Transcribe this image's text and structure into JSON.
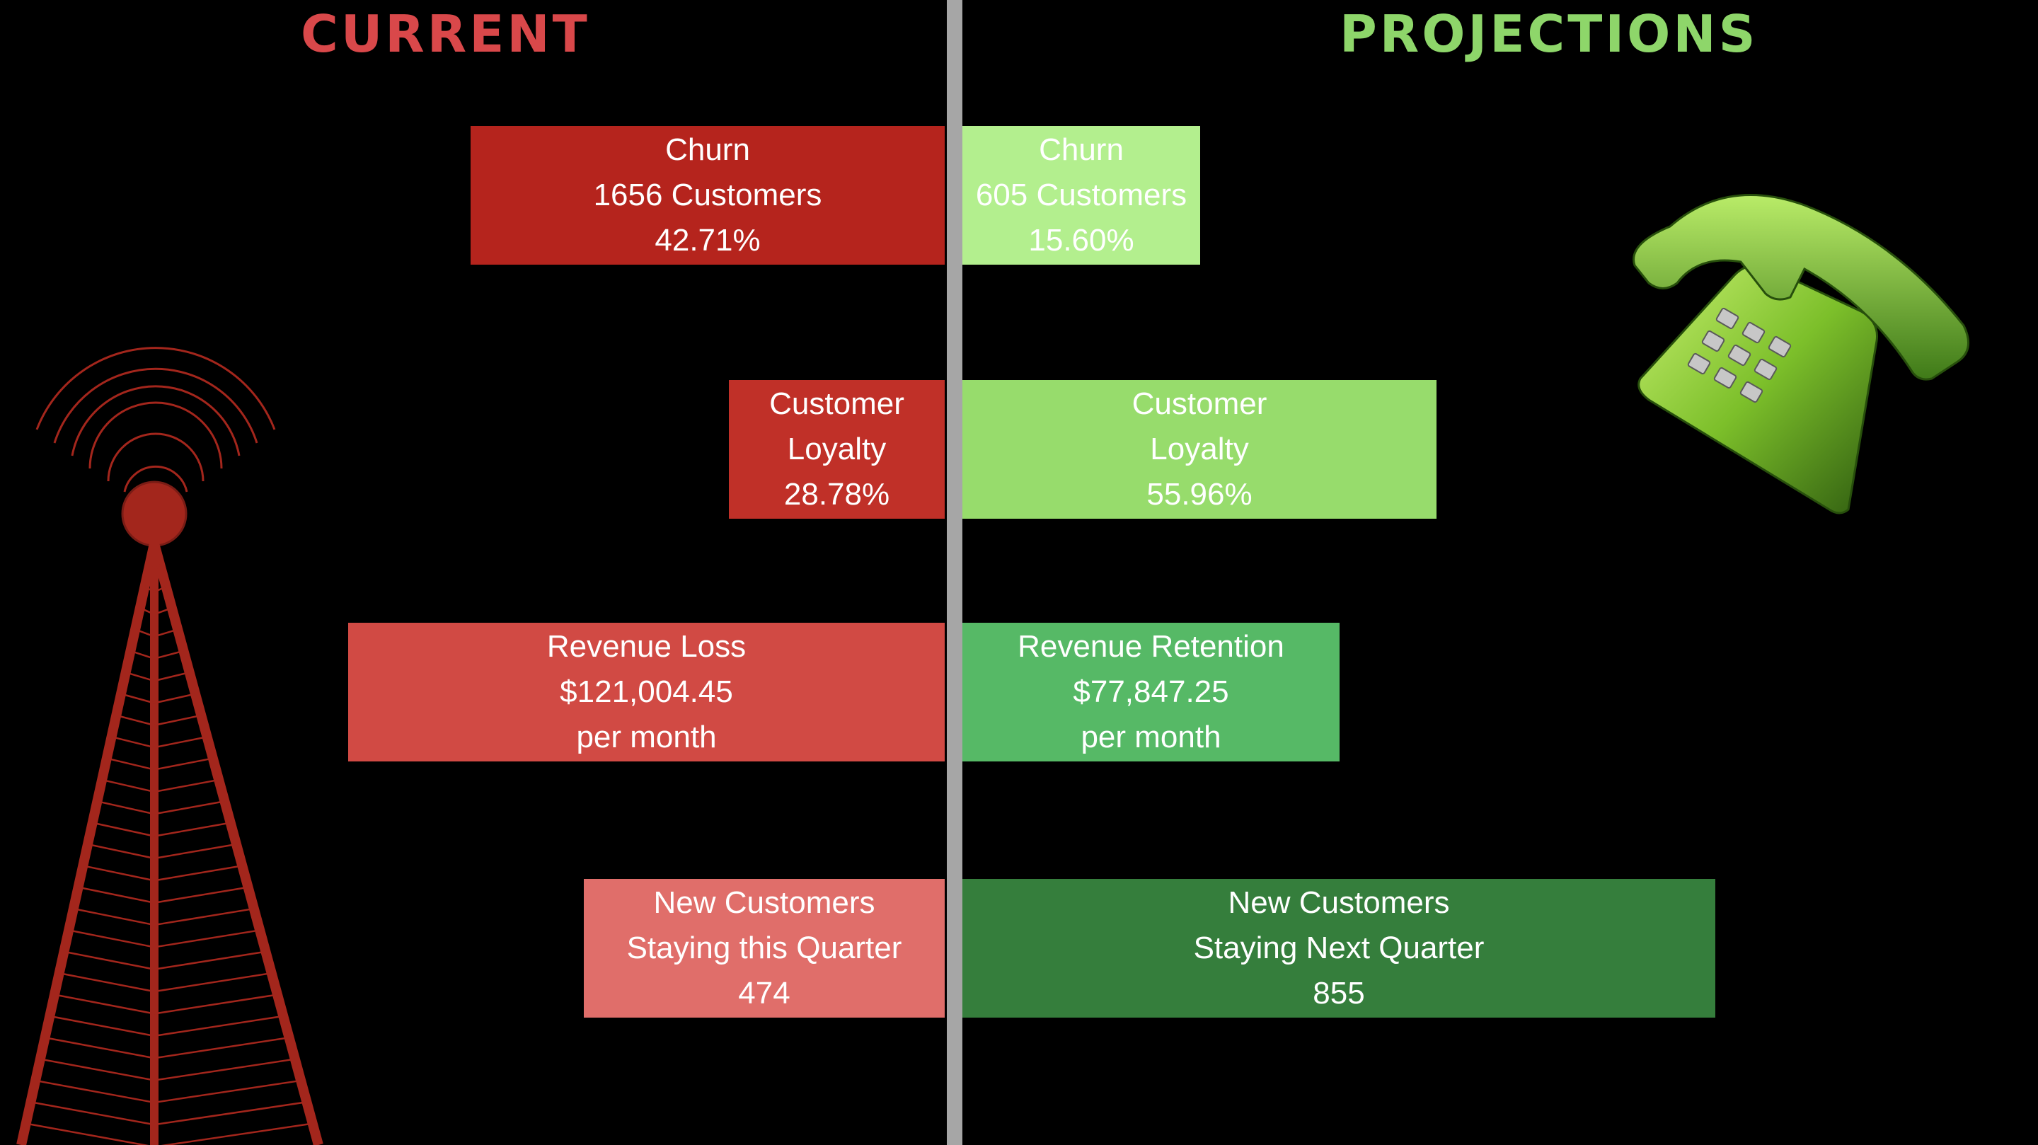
{
  "headings": {
    "current": "CURRENT",
    "projections": "PROJECTIONS",
    "current_color": "#d9484a",
    "projections_color": "#8ed66a"
  },
  "chart_data": {
    "type": "bar",
    "categories": [
      "Churn",
      "Customer Loyalty",
      "Revenue",
      "New Customers"
    ],
    "current": [
      {
        "name": "Churn",
        "lines": [
          "Churn",
          "1656 Customers",
          "42.71%"
        ],
        "value": 42.71,
        "color": "#b5241d"
      },
      {
        "name": "Customer Loyalty",
        "lines": [
          "Customer",
          "Loyalty",
          "28.78%"
        ],
        "value": 28.78,
        "color": "#c03028"
      },
      {
        "name": "Revenue Loss",
        "lines": [
          "Revenue Loss",
          "$121,004.45",
          "per month"
        ],
        "value": 121004.45,
        "color": "#d14a44"
      },
      {
        "name": "New Customers",
        "lines": [
          "New Customers",
          "Staying this Quarter",
          "474"
        ],
        "value": 474,
        "color": "#e06e6a"
      }
    ],
    "projections": [
      {
        "name": "Churn",
        "lines": [
          "Churn",
          "605 Customers",
          "15.60%"
        ],
        "value": 15.6,
        "color": "#b3ef8e"
      },
      {
        "name": "Customer Loyalty",
        "lines": [
          "Customer",
          "Loyalty",
          "55.96%"
        ],
        "value": 55.96,
        "color": "#97dc6c"
      },
      {
        "name": "Revenue Retention",
        "lines": [
          "Revenue Retention",
          "$77,847.25",
          "per month"
        ],
        "value": 77847.25,
        "color": "#56b966"
      },
      {
        "name": "New Customers",
        "lines": [
          "New Customers",
          "Staying Next Quarter",
          "855"
        ],
        "value": 855,
        "color": "#357e3c"
      }
    ]
  },
  "colors": {
    "divider": "#a6a6a6",
    "tower": "#a3261c",
    "phone": "#8fd43a"
  },
  "icons": [
    "radio-tower-icon",
    "telephone-icon"
  ]
}
